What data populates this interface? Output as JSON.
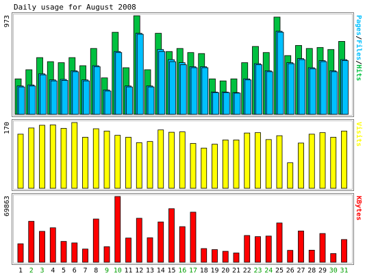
{
  "title": "Daily usage for August 2008",
  "colors": {
    "background": "#FFFFFF",
    "frame": "#C0C0C0",
    "hits": "#00C040",
    "files": "#00C0FF",
    "pages": "#00C0FF",
    "visits": "#FFFF00",
    "kbytes": "#FF0000",
    "weekday_label": "#000000",
    "weekend_label": "#00A000"
  },
  "chart_data": [
    {
      "type": "bar",
      "panel": "hits-files-pages",
      "ymax_label": "973",
      "ylim": [
        0,
        973
      ],
      "categories": [
        "1",
        "2",
        "3",
        "4",
        "5",
        "6",
        "7",
        "8",
        "9",
        "10",
        "11",
        "12",
        "13",
        "14",
        "15",
        "16",
        "17",
        "18",
        "19",
        "20",
        "21",
        "22",
        "23",
        "24",
        "25",
        "26",
        "27",
        "28",
        "29",
        "30",
        "31"
      ],
      "legend": [
        "Pages",
        "Files",
        "Hits"
      ],
      "series": [
        {
          "name": "Hits",
          "color": "#00C040",
          "values": [
            350,
            440,
            560,
            520,
            510,
            560,
            480,
            650,
            360,
            810,
            460,
            973,
            440,
            800,
            620,
            650,
            610,
            600,
            350,
            330,
            350,
            510,
            670,
            610,
            960,
            580,
            680,
            650,
            660,
            640,
            720
          ]
        },
        {
          "name": "Files",
          "color": "#00C0FF",
          "values": [
            280,
            290,
            400,
            340,
            345,
            430,
            340,
            480,
            240,
            620,
            280,
            800,
            280,
            640,
            540,
            510,
            470,
            470,
            220,
            220,
            215,
            350,
            500,
            430,
            820,
            510,
            550,
            460,
            530,
            430,
            540
          ]
        },
        {
          "name": "Pages",
          "color": "#00C0FF",
          "values": [
            270,
            280,
            390,
            330,
            335,
            420,
            330,
            470,
            230,
            610,
            270,
            790,
            270,
            620,
            520,
            490,
            460,
            460,
            215,
            215,
            210,
            340,
            490,
            420,
            810,
            500,
            540,
            450,
            520,
            420,
            530
          ]
        }
      ]
    },
    {
      "type": "bar",
      "panel": "visits",
      "ymax_label": "170",
      "ylim": [
        0,
        170
      ],
      "categories": [
        "1",
        "2",
        "3",
        "4",
        "5",
        "6",
        "7",
        "8",
        "9",
        "10",
        "11",
        "12",
        "13",
        "14",
        "15",
        "16",
        "17",
        "18",
        "19",
        "20",
        "21",
        "22",
        "23",
        "24",
        "25",
        "26",
        "27",
        "28",
        "29",
        "30",
        "31"
      ],
      "legend": [
        "Visits"
      ],
      "series": [
        {
          "name": "Visits",
          "color": "#FFFF00",
          "values": [
            140,
            156,
            163,
            164,
            155,
            170,
            132,
            154,
            148,
            137,
            132,
            118,
            121,
            151,
            145,
            146,
            116,
            104,
            114,
            125,
            125,
            143,
            144,
            126,
            136,
            66,
            117,
            140,
            144,
            132,
            148
          ]
        }
      ]
    },
    {
      "type": "bar",
      "panel": "kbytes",
      "ymax_label": "69863",
      "ylim": [
        0,
        69863
      ],
      "categories": [
        "1",
        "2",
        "3",
        "4",
        "5",
        "6",
        "7",
        "8",
        "9",
        "10",
        "11",
        "12",
        "13",
        "14",
        "15",
        "16",
        "17",
        "18",
        "19",
        "20",
        "21",
        "22",
        "23",
        "24",
        "25",
        "26",
        "27",
        "28",
        "29",
        "30",
        "31"
      ],
      "legend": [
        "KBytes"
      ],
      "series": [
        {
          "name": "KBytes",
          "color": "#FF0000",
          "values": [
            19600,
            43500,
            32800,
            36600,
            22100,
            20500,
            14000,
            45900,
            16500,
            69863,
            25700,
            46700,
            26000,
            42800,
            56900,
            37800,
            53200,
            14500,
            13400,
            11600,
            9800,
            28400,
            27200,
            27800,
            41700,
            12600,
            33200,
            12800,
            30500,
            9200,
            24100
          ]
        }
      ]
    }
  ],
  "weekend_days": [
    2,
    3,
    9,
    10,
    16,
    17,
    23,
    24,
    30,
    31
  ]
}
